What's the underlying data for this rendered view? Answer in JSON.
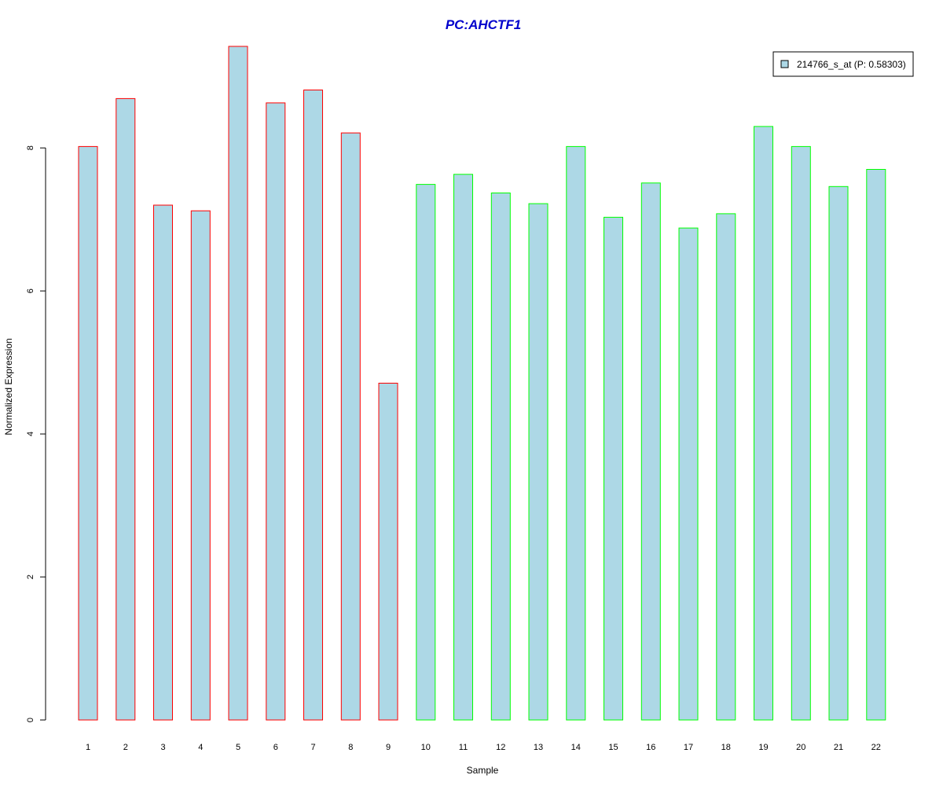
{
  "chart_data": {
    "type": "bar",
    "title": "PC:AHCTF1",
    "xlabel": "Sample",
    "ylabel": "Normalized Expression",
    "categories": [
      "1",
      "2",
      "3",
      "4",
      "5",
      "6",
      "7",
      "8",
      "9",
      "10",
      "11",
      "12",
      "13",
      "14",
      "15",
      "16",
      "17",
      "18",
      "19",
      "20",
      "21",
      "22"
    ],
    "series": [
      {
        "name": "214766_s_at (P: 0.58303)",
        "values": [
          8.02,
          8.69,
          7.2,
          7.12,
          9.42,
          8.63,
          8.81,
          8.21,
          4.71,
          7.49,
          7.63,
          7.37,
          7.22,
          8.02,
          7.03,
          7.51,
          6.88,
          7.08,
          8.3,
          8.02,
          7.46,
          7.7
        ]
      }
    ],
    "yticks": [
      0,
      2,
      4,
      6,
      8
    ],
    "ylim": [
      0,
      9.42
    ],
    "legend_position": "top-right",
    "grid": false,
    "colors": {
      "title": "#0000CC",
      "bar_fill": "#ADD8E6",
      "group1_border": "#FF0000",
      "group2_border": "#00FF00",
      "axis": "#000000"
    },
    "group1_samples": [
      "1",
      "2",
      "3",
      "4",
      "5",
      "6",
      "7",
      "8",
      "9"
    ],
    "group2_samples": [
      "10",
      "11",
      "12",
      "13",
      "14",
      "15",
      "16",
      "17",
      "18",
      "19",
      "20",
      "21",
      "22"
    ]
  }
}
